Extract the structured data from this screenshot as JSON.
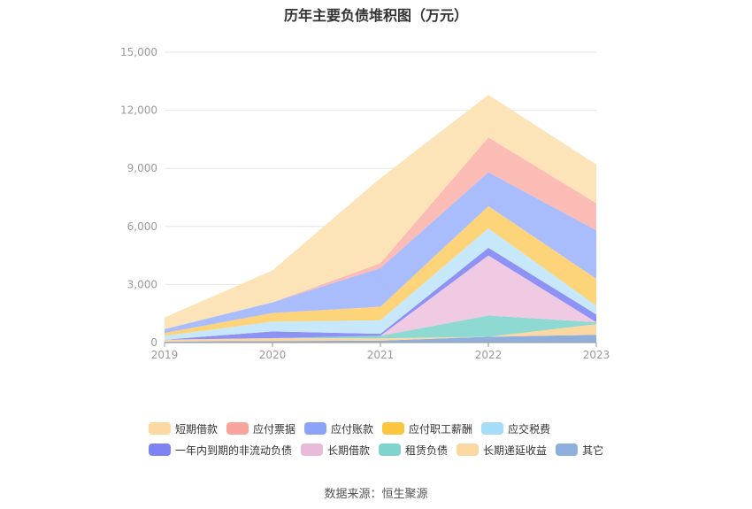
{
  "page": {
    "title": "历年主要负债堆积图（万元）",
    "source": "数据来源：恒生聚源"
  },
  "chart_data": {
    "type": "area",
    "stacked": true,
    "title": "历年主要负债堆积图（万元）",
    "x": [
      "2019",
      "2020",
      "2021",
      "2022",
      "2023"
    ],
    "ylim": [
      0,
      15000
    ],
    "yticks": [
      0,
      3000,
      6000,
      9000,
      12000,
      15000
    ],
    "ytick_labels": [
      "0",
      "3,000",
      "6,000",
      "9,000",
      "12,000",
      "15,000"
    ],
    "grid": true,
    "legend_position": "bottom",
    "series": [
      {
        "name": "其它",
        "color": "#8eaedb",
        "values": [
          50,
          80,
          100,
          300,
          400
        ]
      },
      {
        "name": "长期递延收益",
        "color": "#fdd7a1",
        "values": [
          100,
          150,
          120,
          0,
          550
        ]
      },
      {
        "name": "租赁负债",
        "color": "#8fd9d3",
        "values": [
          0,
          0,
          130,
          1100,
          100
        ]
      },
      {
        "name": "长期借款",
        "color": "#f0c9e3",
        "values": [
          0,
          0,
          0,
          3100,
          0
        ]
      },
      {
        "name": "一年内到期的非流动负债",
        "color": "#8f92f5",
        "values": [
          0,
          350,
          100,
          400,
          400
        ]
      },
      {
        "name": "应交税费",
        "color": "#c7e8fb",
        "values": [
          200,
          500,
          700,
          1000,
          450
        ]
      },
      {
        "name": "应付职工薪酬",
        "color": "#fdd47a",
        "values": [
          150,
          450,
          700,
          1150,
          1400
        ]
      },
      {
        "name": "应付账款",
        "color": "#a9bcfb",
        "values": [
          200,
          550,
          2000,
          1750,
          2500
        ]
      },
      {
        "name": "应付票据",
        "color": "#fbbcb6",
        "values": [
          0,
          0,
          250,
          1800,
          1400
        ]
      },
      {
        "name": "短期借款",
        "color": "#fde4b8",
        "values": [
          600,
          1650,
          4400,
          2200,
          2000
        ]
      }
    ]
  },
  "legend": {
    "rows": [
      [
        {
          "label": "短期借款",
          "color": "#fdd7a1"
        },
        {
          "label": "应付票据",
          "color": "#f7a49c"
        },
        {
          "label": "应付账款",
          "color": "#8ca4f7"
        },
        {
          "label": "应付职工薪酬",
          "color": "#fcc53f"
        },
        {
          "label": "应交税费",
          "color": "#a5dcf7"
        }
      ],
      [
        {
          "label": "一年内到期的非流动负债",
          "color": "#7e82f2"
        },
        {
          "label": "长期借款",
          "color": "#e8bbd9"
        },
        {
          "label": "租赁负债",
          "color": "#80d4cd"
        },
        {
          "label": "长期递延收益",
          "color": "#fdd7a1"
        },
        {
          "label": "其它",
          "color": "#8eaedb"
        }
      ]
    ]
  }
}
